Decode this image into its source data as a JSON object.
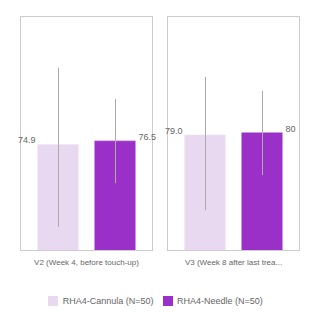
{
  "chart_data": {
    "type": "bar",
    "categories": [
      "V2 (Week 4, before touch-up)",
      "V3 (Week 8 after last trea..."
    ],
    "series": [
      {
        "name": "RHA4-Cannula (N=50)",
        "color": "#e8d8f0",
        "values": [
          74.9,
          79.0
        ],
        "value_labels": [
          "74.9",
          "79.0"
        ],
        "yerr_low": [
          35.0,
          32.0
        ],
        "yerr_high": [
          33.0,
          25.0
        ]
      },
      {
        "name": "RHA4-Needle (N=50)",
        "color": "#9b30c8",
        "values": [
          76.5,
          80.0
        ],
        "value_labels": [
          "76.5",
          "80"
        ],
        "yerr_low": [
          18.0,
          18.0
        ],
        "yerr_high": [
          18.0,
          18.0
        ]
      }
    ],
    "ylim": [
      30,
      130
    ],
    "tick_labels": "x",
    "data_labels": true,
    "grid": false,
    "legend": "bottom"
  }
}
